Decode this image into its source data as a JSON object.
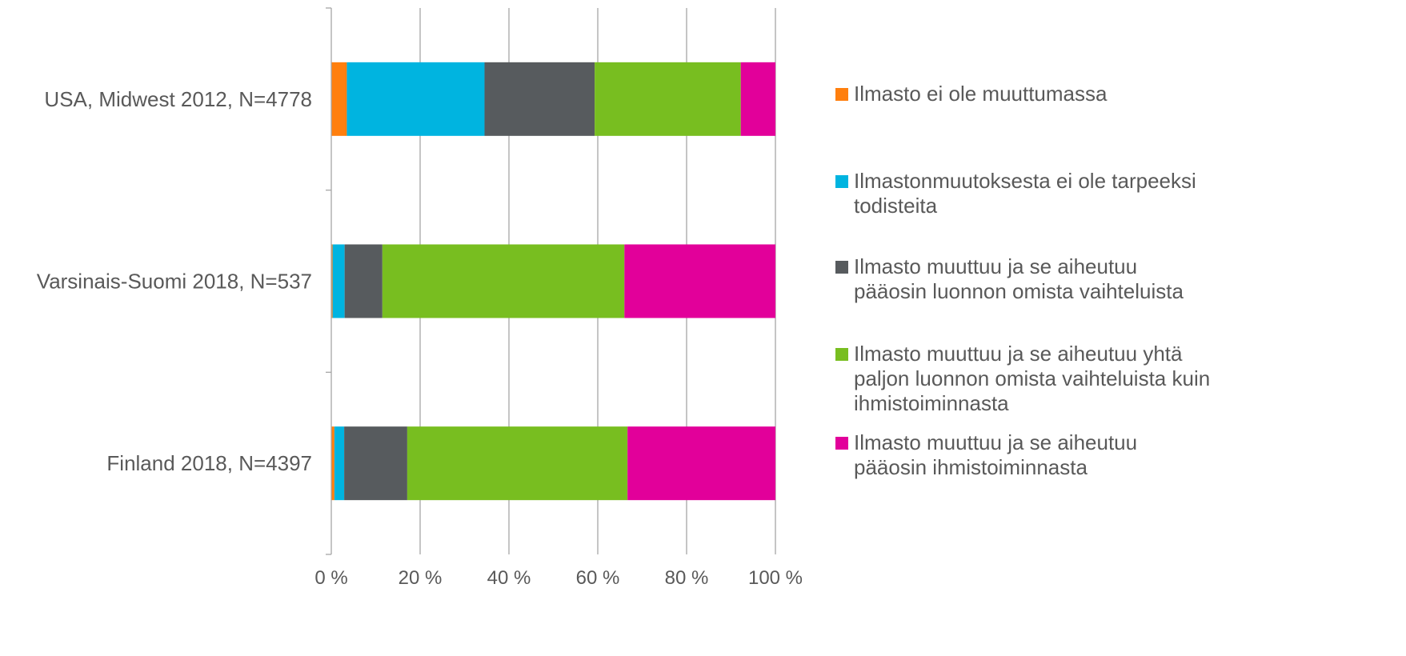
{
  "chart_data": {
    "type": "bar",
    "orientation": "horizontal",
    "stacked": true,
    "percent_stacked": true,
    "title": "",
    "xlabel": "",
    "ylabel": "",
    "xlim": [
      0,
      100
    ],
    "x_ticks": [
      "0 %",
      "20 %",
      "40 %",
      "60 %",
      "80 %",
      "100 %"
    ],
    "grid": "vertical",
    "legend_position": "right",
    "categories": [
      "USA, Midwest 2012, N=4778",
      "Varsinais-Suomi 2018, N=537",
      "Finland 2018, N=4397"
    ],
    "series": [
      {
        "name": "Ilmasto ei ole muuttumassa",
        "color": "#ff7f0e",
        "values": [
          3.5,
          0.3,
          0.7
        ]
      },
      {
        "name": "Ilmastonmuutoksesta ei ole tarpeeksi\ntodisteita",
        "color": "#00b4e0",
        "values": [
          31.0,
          2.7,
          2.2
        ]
      },
      {
        "name": "Ilmasto muuttuu ja se aiheutuu\npääosin luonnon omista vaihteluista",
        "color": "#575b5e",
        "values": [
          24.8,
          8.5,
          14.2
        ]
      },
      {
        "name": "Ilmasto muuttuu ja se aiheutuu yhtä\npaljon luonnon omista vaihteluista kuin\nihmistoiminnasta",
        "color": "#78be20",
        "values": [
          32.9,
          54.5,
          49.6
        ]
      },
      {
        "name": "Ilmasto muuttuu ja se aiheutuu\npääosin ihmistoiminnasta",
        "color": "#e2009a",
        "values": [
          7.8,
          34.0,
          33.3
        ]
      }
    ]
  }
}
